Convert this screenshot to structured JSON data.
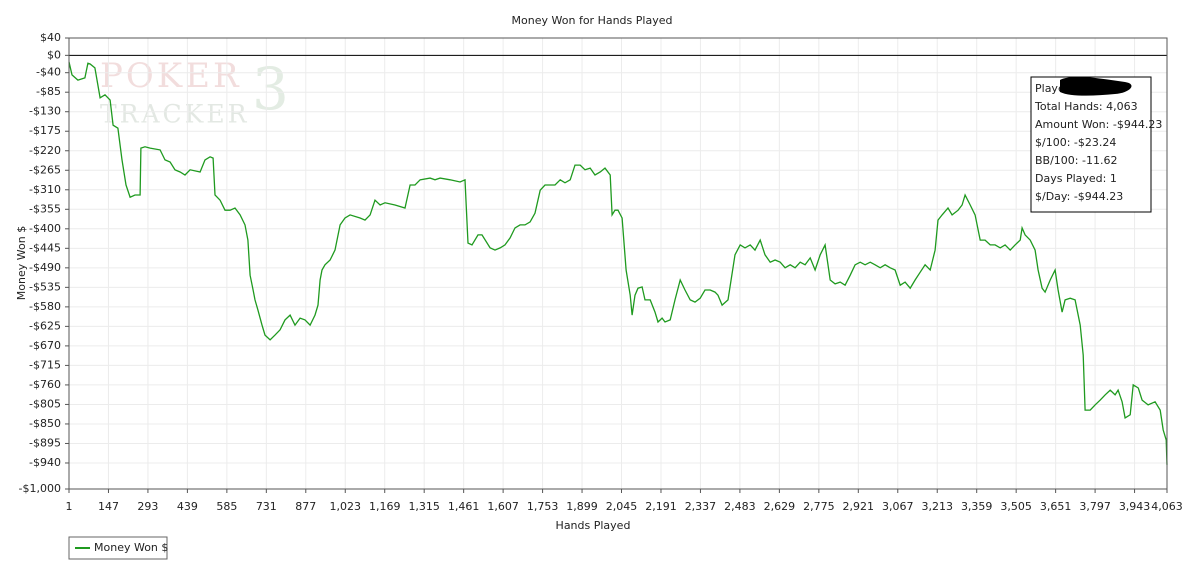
{
  "chart_data": {
    "type": "line",
    "title": "Money Won for Hands Played",
    "x_label": "Hands Played",
    "y_label": "Money Won $",
    "xlim": [
      1,
      4063
    ],
    "ylim": [
      -1000,
      40
    ],
    "xticks": [
      1,
      147,
      293,
      439,
      585,
      731,
      877,
      {
        "value": 1023,
        "label": "1,023"
      },
      {
        "value": 1169,
        "label": "1,169"
      },
      {
        "value": 1315,
        "label": "1,315"
      },
      {
        "value": 1461,
        "label": "1,461"
      },
      {
        "value": 1607,
        "label": "1,607"
      },
      {
        "value": 1753,
        "label": "1,753"
      },
      {
        "value": 1899,
        "label": "1,899"
      },
      {
        "value": 2045,
        "label": "2,045"
      },
      {
        "value": 2191,
        "label": "2,191"
      },
      {
        "value": 2337,
        "label": "2,337"
      },
      {
        "value": 2483,
        "label": "2,483"
      },
      {
        "value": 2629,
        "label": "2,629"
      },
      {
        "value": 2775,
        "label": "2,775"
      },
      {
        "value": 2921,
        "label": "2,921"
      },
      {
        "value": 3067,
        "label": "3,067"
      },
      {
        "value": 3213,
        "label": "3,213"
      },
      {
        "value": 3359,
        "label": "3,359"
      },
      {
        "value": 3505,
        "label": "3,505"
      },
      {
        "value": 3651,
        "label": "3,651"
      },
      {
        "value": 3797,
        "label": "3,797"
      },
      {
        "value": 3943,
        "label": "3,943"
      },
      {
        "value": 4063,
        "label": "4,063"
      }
    ],
    "yticks": [
      {
        "value": 40,
        "label": "$40"
      },
      {
        "value": 0,
        "label": "$0"
      },
      {
        "value": -40,
        "label": "-$40"
      },
      {
        "value": -85,
        "label": "-$85"
      },
      {
        "value": -130,
        "label": "-$130"
      },
      {
        "value": -175,
        "label": "-$175"
      },
      {
        "value": -220,
        "label": "-$220"
      },
      {
        "value": -265,
        "label": "-$265"
      },
      {
        "value": -310,
        "label": "-$310"
      },
      {
        "value": -355,
        "label": "-$355"
      },
      {
        "value": -400,
        "label": "-$400"
      },
      {
        "value": -445,
        "label": "-$445"
      },
      {
        "value": -490,
        "label": "-$490"
      },
      {
        "value": -535,
        "label": "-$535"
      },
      {
        "value": -580,
        "label": "-$580"
      },
      {
        "value": -625,
        "label": "-$625"
      },
      {
        "value": -670,
        "label": "-$670"
      },
      {
        "value": -715,
        "label": "-$715"
      },
      {
        "value": -760,
        "label": "-$760"
      },
      {
        "value": -805,
        "label": "-$805"
      },
      {
        "value": -850,
        "label": "-$850"
      },
      {
        "value": -895,
        "label": "-$895"
      },
      {
        "value": -940,
        "label": "-$940"
      },
      {
        "value": -1000,
        "label": "-$1,000"
      }
    ],
    "grid": true,
    "legend": "bottom-left",
    "watermark": {
      "top": "POKER",
      "badge": "3",
      "bottom": "TRACKER"
    },
    "info_box": {
      "player_label": "Player:",
      "lines": [
        "Total Hands: 4,063",
        "Amount Won: -$944.23",
        "$/100: -$23.24",
        "BB/100: -11.62",
        "Days Played: 1",
        "$/Day: -$944.23"
      ]
    },
    "x": [
      1,
      12,
      34,
      60,
      71,
      79,
      97,
      116,
      134,
      153,
      164,
      182,
      197,
      212,
      227,
      245,
      264,
      267,
      282,
      301,
      338,
      356,
      375,
      393,
      412,
      430,
      449,
      486,
      504,
      523,
      534,
      541,
      560,
      578,
      597,
      615,
      634,
      652,
      663,
      671,
      682,
      689,
      700,
      715,
      726,
      745,
      763,
      782,
      800,
      819,
      837,
      856,
      874,
      893,
      911,
      922,
      930,
      937,
      948,
      967,
      985,
      1004,
      1022,
      1041,
      1078,
      1096,
      1115,
      1133,
      1152,
      1170,
      1207,
      1244,
      1263,
      1281,
      1300,
      1337,
      1355,
      1374,
      1411,
      1448,
      1466,
      1477,
      1492,
      1514,
      1529,
      1559,
      1577,
      1596,
      1614,
      1633,
      1651,
      1670,
      1688,
      1707,
      1725,
      1744,
      1762,
      1781,
      1799,
      1818,
      1836,
      1855,
      1873,
      1892,
      1910,
      1929,
      1947,
      1966,
      1984,
      2003,
      2010,
      2021,
      2032,
      2047,
      2062,
      2077,
      2084,
      2095,
      2106,
      2121,
      2132,
      2151,
      2169,
      2180,
      2195,
      2206,
      2225,
      2243,
      2262,
      2280,
      2299,
      2317,
      2336,
      2354,
      2373,
      2391,
      2402,
      2417,
      2439,
      2465,
      2484,
      2502,
      2521,
      2539,
      2558,
      2576,
      2595,
      2613,
      2632,
      2650,
      2669,
      2687,
      2706,
      2724,
      2743,
      2761,
      2780,
      2798,
      2817,
      2835,
      2854,
      2872,
      2891,
      2909,
      2928,
      2946,
      2965,
      2983,
      3002,
      3020,
      3039,
      3057,
      3076,
      3094,
      3113,
      3131,
      3150,
      3168,
      3187,
      3205,
      3216,
      3231,
      3253,
      3268,
      3290,
      3305,
      3316,
      3335,
      3353,
      3372,
      3390,
      3409,
      3427,
      3446,
      3464,
      3483,
      3501,
      3520,
      3527,
      3538,
      3557,
      3575,
      3586,
      3601,
      3612,
      3631,
      3649,
      3660,
      3675,
      3686,
      3705,
      3723,
      3742,
      3753,
      3760,
      3779,
      3797,
      3816,
      3834,
      3853,
      3871,
      3882,
      3897,
      3908,
      3927,
      3938,
      3957,
      3971,
      3993,
      4019,
      4038,
      4049,
      4060,
      4063
    ],
    "series": [
      {
        "name": "Money Won $",
        "color": "#1f9a1f",
        "values": [
          -15,
          -45,
          -57,
          -52,
          -18,
          -20,
          -29,
          -98,
          -91,
          -103,
          -161,
          -168,
          -241,
          -299,
          -327,
          -322,
          -322,
          -214,
          -211,
          -214,
          -218,
          -241,
          -246,
          -264,
          -269,
          -276,
          -264,
          -269,
          -241,
          -234,
          -237,
          -322,
          -334,
          -357,
          -357,
          -352,
          -368,
          -391,
          -426,
          -507,
          -541,
          -564,
          -587,
          -622,
          -645,
          -656,
          -645,
          -633,
          -610,
          -599,
          -622,
          -606,
          -610,
          -622,
          -599,
          -576,
          -518,
          -495,
          -483,
          -472,
          -449,
          -391,
          -375,
          -368,
          -375,
          -380,
          -368,
          -334,
          -345,
          -340,
          -345,
          -352,
          -299,
          -299,
          -287,
          -283,
          -287,
          -283,
          -287,
          -292,
          -287,
          -433,
          -437,
          -414,
          -414,
          -444,
          -449,
          -444,
          -437,
          -421,
          -398,
          -391,
          -391,
          -384,
          -364,
          -311,
          -299,
          -299,
          -299,
          -287,
          -294,
          -287,
          -253,
          -253,
          -264,
          -260,
          -276,
          -269,
          -260,
          -276,
          -368,
          -357,
          -357,
          -375,
          -495,
          -553,
          -599,
          -553,
          -537,
          -534,
          -564,
          -564,
          -592,
          -615,
          -606,
          -615,
          -610,
          -564,
          -518,
          -541,
          -564,
          -569,
          -560,
          -541,
          -541,
          -546,
          -553,
          -576,
          -564,
          -460,
          -437,
          -444,
          -437,
          -449,
          -426,
          -460,
          -477,
          -472,
          -477,
          -490,
          -483,
          -490,
          -477,
          -483,
          -467,
          -495,
          -460,
          -437,
          -518,
          -527,
          -523,
          -530,
          -507,
          -483,
          -477,
          -483,
          -477,
          -483,
          -490,
          -483,
          -490,
          -495,
          -530,
          -523,
          -537,
          -518,
          -500,
          -483,
          -495,
          -449,
          -380,
          -368,
          -352,
          -368,
          -357,
          -345,
          -322,
          -345,
          -368,
          -426,
          -426,
          -437,
          -437,
          -444,
          -437,
          -449,
          -437,
          -426,
          -398,
          -414,
          -426,
          -449,
          -495,
          -537,
          -546,
          -518,
          -495,
          -541,
          -592,
          -564,
          -560,
          -564,
          -622,
          -691,
          -818,
          -818,
          -806,
          -795,
          -783,
          -772,
          -783,
          -772,
          -799,
          -836,
          -829,
          -760,
          -767,
          -795,
          -806,
          -799,
          -818,
          -864,
          -887,
          -944.23
        ]
      }
    ]
  }
}
